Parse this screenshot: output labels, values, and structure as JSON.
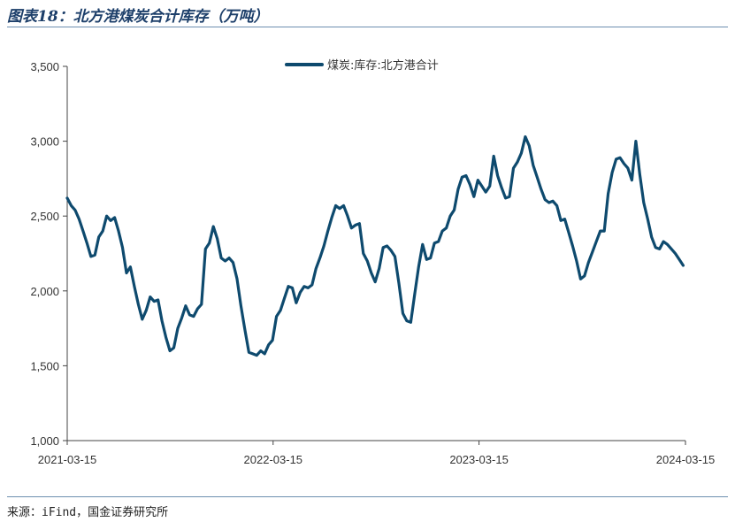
{
  "figure": {
    "title": "图表18：北方港煤炭合计库存（万吨）",
    "source": "来源：iFind，国金证券研究所"
  },
  "chart_data": {
    "type": "line",
    "ylim": [
      1000,
      3500
    ],
    "yticks": [
      1000,
      1500,
      2000,
      2500,
      3000,
      3500
    ],
    "ytick_labels": [
      "1,000",
      "1,500",
      "2,000",
      "2,500",
      "3,000",
      "3,500"
    ],
    "xlim": [
      "2021-03-15",
      "2024-03-15"
    ],
    "xtick_labels": [
      "2021-03-15",
      "2022-03-15",
      "2023-03-15",
      "2024-03-15"
    ],
    "grid": false,
    "legend_position": "top-center",
    "series": [
      {
        "name": "煤炭:库存:北方港合计",
        "color": "#0e4a6e",
        "points": [
          [
            "2021-03-15",
            2620
          ],
          [
            "2021-03-22",
            2570
          ],
          [
            "2021-03-29",
            2540
          ],
          [
            "2021-04-05",
            2480
          ],
          [
            "2021-04-12",
            2400
          ],
          [
            "2021-04-19",
            2320
          ],
          [
            "2021-04-26",
            2230
          ],
          [
            "2021-05-03",
            2240
          ],
          [
            "2021-05-10",
            2360
          ],
          [
            "2021-05-17",
            2400
          ],
          [
            "2021-05-24",
            2500
          ],
          [
            "2021-05-31",
            2470
          ],
          [
            "2021-06-07",
            2490
          ],
          [
            "2021-06-14",
            2400
          ],
          [
            "2021-06-21",
            2290
          ],
          [
            "2021-06-28",
            2120
          ],
          [
            "2021-07-05",
            2160
          ],
          [
            "2021-07-12",
            2030
          ],
          [
            "2021-07-19",
            1910
          ],
          [
            "2021-07-26",
            1810
          ],
          [
            "2021-08-02",
            1870
          ],
          [
            "2021-08-09",
            1960
          ],
          [
            "2021-08-16",
            1930
          ],
          [
            "2021-08-23",
            1940
          ],
          [
            "2021-08-30",
            1800
          ],
          [
            "2021-09-06",
            1690
          ],
          [
            "2021-09-13",
            1600
          ],
          [
            "2021-09-20",
            1620
          ],
          [
            "2021-09-27",
            1750
          ],
          [
            "2021-10-04",
            1820
          ],
          [
            "2021-10-11",
            1900
          ],
          [
            "2021-10-18",
            1840
          ],
          [
            "2021-10-25",
            1830
          ],
          [
            "2021-11-01",
            1880
          ],
          [
            "2021-11-08",
            1910
          ],
          [
            "2021-11-15",
            2280
          ],
          [
            "2021-11-22",
            2320
          ],
          [
            "2021-11-29",
            2430
          ],
          [
            "2021-12-06",
            2350
          ],
          [
            "2021-12-13",
            2220
          ],
          [
            "2021-12-20",
            2200
          ],
          [
            "2021-12-27",
            2220
          ],
          [
            "2022-01-03",
            2190
          ],
          [
            "2022-01-10",
            2080
          ],
          [
            "2022-01-17",
            1900
          ],
          [
            "2022-01-24",
            1740
          ],
          [
            "2022-01-31",
            1590
          ],
          [
            "2022-02-07",
            1580
          ],
          [
            "2022-02-14",
            1570
          ],
          [
            "2022-02-21",
            1600
          ],
          [
            "2022-02-28",
            1580
          ],
          [
            "2022-03-07",
            1640
          ],
          [
            "2022-03-14",
            1670
          ],
          [
            "2022-03-21",
            1830
          ],
          [
            "2022-03-28",
            1870
          ],
          [
            "2022-04-04",
            1950
          ],
          [
            "2022-04-11",
            2030
          ],
          [
            "2022-04-18",
            2020
          ],
          [
            "2022-04-25",
            1920
          ],
          [
            "2022-05-02",
            1990
          ],
          [
            "2022-05-09",
            2030
          ],
          [
            "2022-05-16",
            2020
          ],
          [
            "2022-05-23",
            2040
          ],
          [
            "2022-05-30",
            2150
          ],
          [
            "2022-06-06",
            2220
          ],
          [
            "2022-06-13",
            2300
          ],
          [
            "2022-06-20",
            2400
          ],
          [
            "2022-06-27",
            2490
          ],
          [
            "2022-07-04",
            2570
          ],
          [
            "2022-07-11",
            2550
          ],
          [
            "2022-07-18",
            2570
          ],
          [
            "2022-07-25",
            2500
          ],
          [
            "2022-08-01",
            2420
          ],
          [
            "2022-08-08",
            2440
          ],
          [
            "2022-08-15",
            2450
          ],
          [
            "2022-08-22",
            2250
          ],
          [
            "2022-08-29",
            2200
          ],
          [
            "2022-09-05",
            2120
          ],
          [
            "2022-09-12",
            2060
          ],
          [
            "2022-09-19",
            2150
          ],
          [
            "2022-09-26",
            2290
          ],
          [
            "2022-10-03",
            2300
          ],
          [
            "2022-10-10",
            2270
          ],
          [
            "2022-10-17",
            2230
          ],
          [
            "2022-10-24",
            2050
          ],
          [
            "2022-10-31",
            1850
          ],
          [
            "2022-11-07",
            1800
          ],
          [
            "2022-11-14",
            1790
          ],
          [
            "2022-11-21",
            1980
          ],
          [
            "2022-11-28",
            2160
          ],
          [
            "2022-12-05",
            2310
          ],
          [
            "2022-12-12",
            2210
          ],
          [
            "2022-12-19",
            2220
          ],
          [
            "2022-12-26",
            2320
          ],
          [
            "2023-01-02",
            2330
          ],
          [
            "2023-01-09",
            2400
          ],
          [
            "2023-01-16",
            2420
          ],
          [
            "2023-01-23",
            2500
          ],
          [
            "2023-01-30",
            2540
          ],
          [
            "2023-02-06",
            2680
          ],
          [
            "2023-02-13",
            2760
          ],
          [
            "2023-02-20",
            2770
          ],
          [
            "2023-02-27",
            2710
          ],
          [
            "2023-03-06",
            2630
          ],
          [
            "2023-03-13",
            2740
          ],
          [
            "2023-03-20",
            2700
          ],
          [
            "2023-03-27",
            2660
          ],
          [
            "2023-04-03",
            2700
          ],
          [
            "2023-04-10",
            2900
          ],
          [
            "2023-04-17",
            2770
          ],
          [
            "2023-04-24",
            2690
          ],
          [
            "2023-05-01",
            2620
          ],
          [
            "2023-05-08",
            2630
          ],
          [
            "2023-05-15",
            2820
          ],
          [
            "2023-05-22",
            2860
          ],
          [
            "2023-05-29",
            2920
          ],
          [
            "2023-06-05",
            3030
          ],
          [
            "2023-06-12",
            2970
          ],
          [
            "2023-06-19",
            2840
          ],
          [
            "2023-06-26",
            2760
          ],
          [
            "2023-07-03",
            2680
          ],
          [
            "2023-07-10",
            2610
          ],
          [
            "2023-07-17",
            2590
          ],
          [
            "2023-07-24",
            2600
          ],
          [
            "2023-07-31",
            2570
          ],
          [
            "2023-08-07",
            2470
          ],
          [
            "2023-08-14",
            2480
          ],
          [
            "2023-08-21",
            2390
          ],
          [
            "2023-08-28",
            2300
          ],
          [
            "2023-09-04",
            2200
          ],
          [
            "2023-09-11",
            2080
          ],
          [
            "2023-09-18",
            2100
          ],
          [
            "2023-09-25",
            2190
          ],
          [
            "2023-10-02",
            2260
          ],
          [
            "2023-10-09",
            2330
          ],
          [
            "2023-10-16",
            2400
          ],
          [
            "2023-10-23",
            2400
          ],
          [
            "2023-10-30",
            2650
          ],
          [
            "2023-11-06",
            2790
          ],
          [
            "2023-11-13",
            2880
          ],
          [
            "2023-11-20",
            2890
          ],
          [
            "2023-11-27",
            2850
          ],
          [
            "2023-12-04",
            2820
          ],
          [
            "2023-12-11",
            2740
          ],
          [
            "2023-12-18",
            3000
          ],
          [
            "2023-12-25",
            2780
          ],
          [
            "2024-01-01",
            2590
          ],
          [
            "2024-01-08",
            2480
          ],
          [
            "2024-01-15",
            2360
          ],
          [
            "2024-01-22",
            2290
          ],
          [
            "2024-01-29",
            2280
          ],
          [
            "2024-02-05",
            2330
          ],
          [
            "2024-02-12",
            2310
          ],
          [
            "2024-02-19",
            2280
          ],
          [
            "2024-02-26",
            2250
          ],
          [
            "2024-03-04",
            2210
          ],
          [
            "2024-03-11",
            2170
          ]
        ]
      }
    ]
  }
}
